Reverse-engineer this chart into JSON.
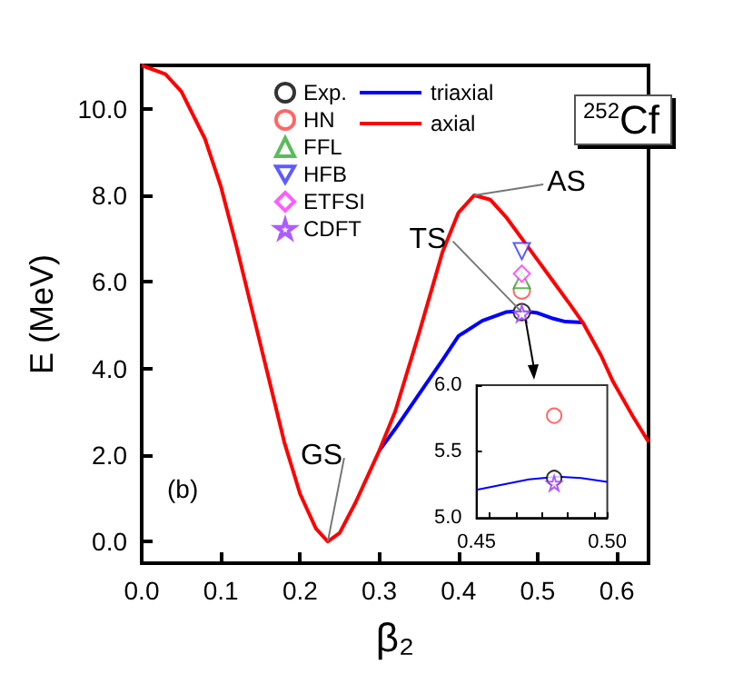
{
  "chart_data": [
    {
      "type": "line",
      "xlabel": "β₂",
      "ylabel": "E (MeV)",
      "xlim": [
        0,
        0.64
      ],
      "ylim": [
        -0.5,
        11
      ],
      "xticks": [
        {
          "value": 0,
          "label": "0.0"
        },
        {
          "value": 0.1,
          "label": "0.1"
        },
        {
          "value": 0.2,
          "label": "0.2"
        },
        {
          "value": 0.3,
          "label": "0.3"
        },
        {
          "value": 0.4,
          "label": "0.4"
        },
        {
          "value": 0.5,
          "label": "0.5"
        },
        {
          "value": 0.6,
          "label": "0.6"
        }
      ],
      "yticks": [
        {
          "value": 0,
          "label": "0.0"
        },
        {
          "value": 2,
          "label": "2.0"
        },
        {
          "value": 4,
          "label": "4.0"
        },
        {
          "value": 6,
          "label": "6.0"
        },
        {
          "value": 8,
          "label": "8.0"
        },
        {
          "value": 10,
          "label": "10.0"
        }
      ],
      "legend": "top",
      "grid": false,
      "annotations": [
        "(b)",
        "$^{252}$Cf",
        {
          "text": "GS",
          "x": 0.235,
          "y": 0
        },
        {
          "text": "AS",
          "x": 0.42,
          "y": 8.0
        },
        {
          "text": "TS",
          "x": 0.48,
          "y": 5.3
        }
      ],
      "series": [
        {
          "name": "triaxial",
          "color": "#0000ff",
          "x": [
            0.3,
            0.32,
            0.35,
            0.38,
            0.4,
            0.43,
            0.46,
            0.48,
            0.5,
            0.52,
            0.535,
            0.557
          ],
          "values": [
            2.1,
            2.6,
            3.4,
            4.2,
            4.75,
            5.1,
            5.3,
            5.33,
            5.28,
            5.15,
            5.08,
            5.06
          ]
        },
        {
          "name": "axial",
          "color": "#ff0000",
          "x": [
            0,
            0.03,
            0.05,
            0.08,
            0.1,
            0.12,
            0.14,
            0.16,
            0.18,
            0.2,
            0.22,
            0.235,
            0.25,
            0.27,
            0.29,
            0.3,
            0.32,
            0.35,
            0.38,
            0.4,
            0.42,
            0.44,
            0.46,
            0.48,
            0.5,
            0.52,
            0.54,
            0.557,
            0.58,
            0.595,
            0.62,
            0.64
          ],
          "values": [
            11,
            10.8,
            10.4,
            9.3,
            8.2,
            6.8,
            5.3,
            3.8,
            2.3,
            1.1,
            0.3,
            0,
            0.2,
            0.9,
            1.7,
            2.1,
            3.0,
            4.8,
            6.7,
            7.6,
            8.0,
            7.9,
            7.5,
            7.0,
            6.5,
            6.0,
            5.5,
            5.06,
            4.3,
            3.7,
            2.9,
            2.3
          ]
        },
        {
          "name": "Exp.",
          "type": "scatter",
          "marker": "circle",
          "color": "#000000",
          "x": [
            0.48
          ],
          "values": [
            5.3
          ]
        },
        {
          "name": "HN",
          "type": "scatter",
          "marker": "circle",
          "color": "#ff4040",
          "x": [
            0.48
          ],
          "values": [
            5.8
          ]
        },
        {
          "name": "FFL",
          "type": "scatter",
          "marker": "triangle",
          "color": "#33aa33",
          "x": [
            0.48
          ],
          "values": [
            6.04
          ]
        },
        {
          "name": "HFB",
          "type": "scatter",
          "marker": "triangle-down",
          "color": "#3333ff",
          "x": [
            0.48
          ],
          "values": [
            6.71
          ]
        },
        {
          "name": "ETFSI",
          "type": "scatter",
          "marker": "diamond",
          "color": "#ff33ff",
          "x": [
            0.48
          ],
          "values": [
            6.19
          ]
        },
        {
          "name": "CDFT",
          "type": "scatter",
          "marker": "star",
          "color": "#9933ff",
          "x": [
            0.48
          ],
          "values": [
            5.27
          ]
        }
      ]
    },
    {
      "type": "line",
      "xlim": [
        0.45,
        0.5
      ],
      "ylim": [
        5,
        6
      ],
      "xticks": [
        {
          "value": 0.45,
          "label": "0.45"
        },
        {
          "value": 0.5,
          "label": "0.50"
        }
      ],
      "yticks": [
        {
          "value": 5,
          "label": "5.0"
        },
        {
          "value": 5.5,
          "label": "5.5"
        },
        {
          "value": 6,
          "label": "6.0"
        }
      ],
      "grid": false,
      "series": [
        {
          "color": "#0000ff",
          "x": [
            0.45,
            0.46,
            0.47,
            0.481,
            0.49,
            0.5
          ],
          "values": [
            5.21,
            5.25,
            5.29,
            5.31,
            5.3,
            5.27
          ]
        },
        {
          "type": "scatter",
          "marker": "circle",
          "color": "#ff4040",
          "x": [
            0.4797
          ],
          "values": [
            5.77
          ]
        },
        {
          "type": "scatter",
          "marker": "circle",
          "color": "#000000",
          "x": [
            0.4797
          ],
          "values": [
            5.3
          ]
        },
        {
          "type": "scatter",
          "marker": "star",
          "color": "#9933ff",
          "x": [
            0.4797
          ],
          "values": [
            5.26
          ]
        }
      ]
    }
  ]
}
